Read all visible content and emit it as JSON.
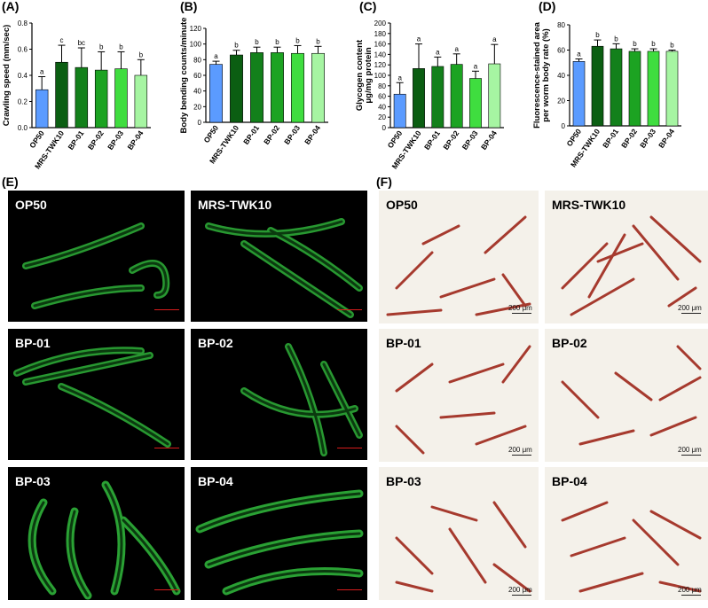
{
  "panels": {
    "A": "(A)",
    "B": "(B)",
    "C": "(C)",
    "D": "(D)",
    "E": "(E)",
    "F": "(F)"
  },
  "colors": [
    "#5b9bff",
    "#0b5e12",
    "#13801b",
    "#1ca322",
    "#3fdd3f",
    "#a6f5a2"
  ],
  "chart_data": [
    {
      "type": "bar",
      "panel": "(A)",
      "ylabel": "Crawling speed (mm/sec)",
      "categories": [
        "OP50",
        "MRS-TWK10",
        "BP-01",
        "BP-02",
        "BP-03",
        "BP-04"
      ],
      "values": [
        0.29,
        0.5,
        0.46,
        0.44,
        0.45,
        0.4
      ],
      "errors": [
        0.1,
        0.13,
        0.15,
        0.14,
        0.13,
        0.12
      ],
      "letters": [
        "a",
        "c",
        "bc",
        "b",
        "b",
        "b"
      ],
      "ylim": [
        0,
        0.8
      ],
      "yticks": [
        "0.0",
        "0.2",
        "0.4",
        "0.6",
        "0.8"
      ],
      "tickvals": [
        0,
        0.2,
        0.4,
        0.6,
        0.8
      ]
    },
    {
      "type": "bar",
      "panel": "(B)",
      "ylabel": "Body bending counts/minute",
      "categories": [
        "OP50",
        "MRS-TWK10",
        "BP-01",
        "BP-02",
        "BP-03",
        "BP-04"
      ],
      "values": [
        74,
        86,
        89,
        89,
        88,
        88
      ],
      "errors": [
        4,
        6,
        7,
        7,
        10,
        9
      ],
      "letters": [
        "a",
        "b",
        "b",
        "b",
        "b",
        "b"
      ],
      "ylim": [
        0,
        120
      ],
      "yticks": [
        "0",
        "20",
        "40",
        "60",
        "80",
        "100",
        "120"
      ],
      "tickvals": [
        0,
        20,
        40,
        60,
        80,
        100,
        120
      ]
    },
    {
      "type": "bar",
      "panel": "(C)",
      "ylabel": "Glycogen content\nμg/mg protein",
      "categories": [
        "OP50",
        "MRS-TWK10",
        "BP-01",
        "BP-02",
        "BP-03",
        "BP-04"
      ],
      "values": [
        64,
        113,
        117,
        121,
        94,
        122
      ],
      "errors": [
        22,
        47,
        18,
        20,
        14,
        37
      ],
      "letters": [
        "a",
        "a",
        "a",
        "a",
        "a",
        "a"
      ],
      "ylim": [
        0,
        200
      ],
      "yticks": [
        "0",
        "20",
        "40",
        "60",
        "80",
        "100",
        "120",
        "140",
        "160",
        "180",
        "200"
      ],
      "tickvals": [
        0,
        20,
        40,
        60,
        80,
        100,
        120,
        140,
        160,
        180,
        200
      ]
    },
    {
      "type": "bar",
      "panel": "(D)",
      "ylabel": "Fluorescence-stained area\nper worm body rate (%)",
      "categories": [
        "OP50",
        "MRS-TWK10",
        "BP-01",
        "BP-02",
        "BP-03",
        "BP-04"
      ],
      "values": [
        51,
        63,
        61,
        59,
        59,
        59
      ],
      "errors": [
        2,
        5,
        4,
        2,
        2,
        1
      ],
      "letters": [
        "a",
        "b",
        "b",
        "b",
        "b",
        "b"
      ],
      "ylim": [
        0,
        80
      ],
      "yticks": [
        "0",
        "20",
        "40",
        "60",
        "80"
      ],
      "tickvals": [
        0,
        20,
        40,
        60,
        80
      ]
    }
  ],
  "fluorescence_panels": [
    "OP50",
    "MRS-TWK10",
    "BP-01",
    "BP-02",
    "BP-03",
    "BP-04"
  ],
  "brightfield_panels": [
    "OP50",
    "MRS-TWK10",
    "BP-01",
    "BP-02",
    "BP-03",
    "BP-04"
  ],
  "scale_text": "200 μm"
}
